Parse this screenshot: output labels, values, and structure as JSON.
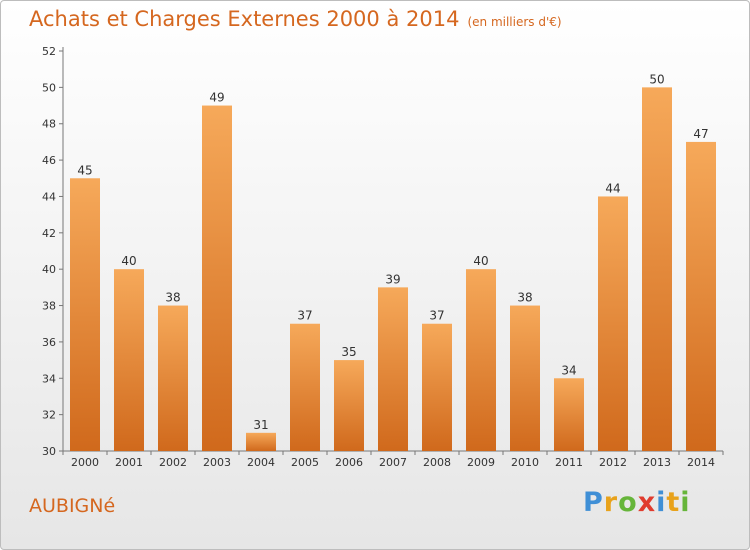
{
  "chart_data": {
    "type": "bar",
    "title": "Achats et Charges Externes 2000 à 2014",
    "subtitle": "(en milliers d'€)",
    "categories": [
      "2000",
      "2001",
      "2002",
      "2003",
      "2004",
      "2005",
      "2006",
      "2007",
      "2008",
      "2009",
      "2010",
      "2011",
      "2012",
      "2013",
      "2014"
    ],
    "values": [
      45,
      40,
      38,
      49,
      31,
      37,
      35,
      39,
      37,
      40,
      38,
      34,
      44,
      50,
      47
    ],
    "ylim": [
      30,
      52
    ],
    "yticks": [
      30,
      32,
      34,
      36,
      38,
      40,
      42,
      44,
      46,
      48,
      50,
      52
    ],
    "xlabel": "",
    "ylabel": "",
    "grid": false,
    "bar_color": "#ee8a2f"
  },
  "commune": "AUBIGNé",
  "logo": {
    "text": "Proxiti",
    "letters": [
      {
        "char": "P",
        "color": "#3f8fd6"
      },
      {
        "char": "r",
        "color": "#e8a21b"
      },
      {
        "char": "o",
        "color": "#66b53a"
      },
      {
        "char": "x",
        "color": "#e03c2e"
      },
      {
        "char": "i",
        "color": "#3f8fd6"
      },
      {
        "char": "t",
        "color": "#e8a21b"
      },
      {
        "char": "i",
        "color": "#66b53a"
      }
    ]
  }
}
